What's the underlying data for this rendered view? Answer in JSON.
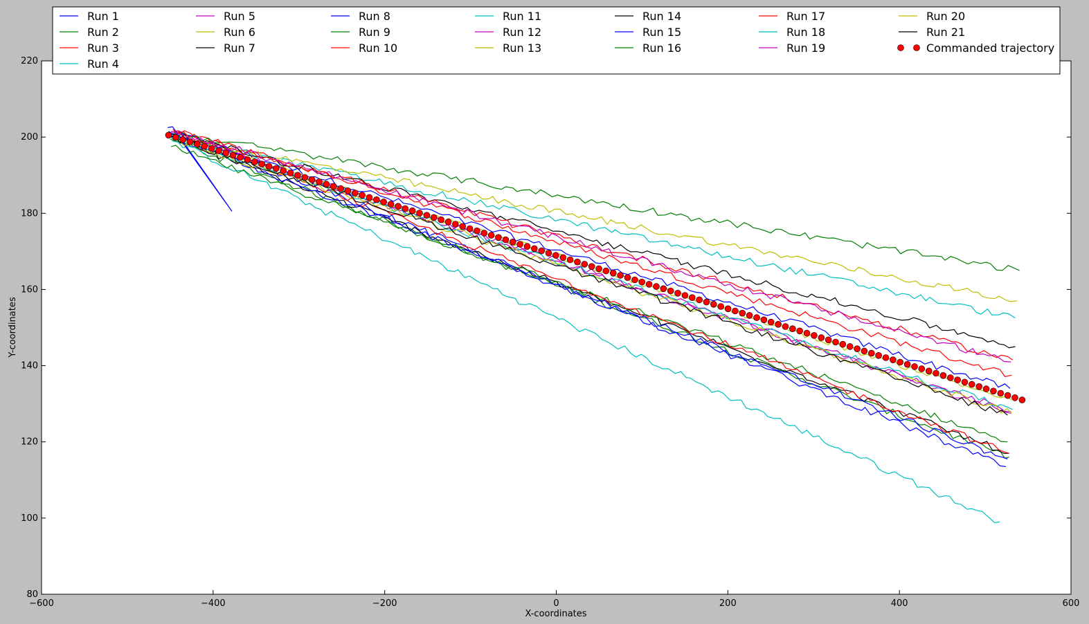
{
  "chart_data": {
    "type": "line",
    "title": "",
    "xlabel": "X-coordinates",
    "ylabel": "Y-coordinates",
    "xlim": [
      -600,
      600
    ],
    "ylim": [
      80,
      220
    ],
    "xticks": [
      "−600",
      "−400",
      "−200",
      "0",
      "200",
      "400",
      "600"
    ],
    "xtick_values": [
      -600,
      -400,
      -200,
      0,
      200,
      400,
      600
    ],
    "yticks": [
      "80",
      "100",
      "120",
      "140",
      "160",
      "180",
      "200",
      "220"
    ],
    "ytick_values": [
      80,
      100,
      120,
      140,
      160,
      180,
      200,
      220
    ],
    "grid": false,
    "legend_placement": "top",
    "series": [
      {
        "name": "Run 1",
        "color": "#0000ff",
        "start": [
          -452,
          201.5
        ],
        "end": [
          529,
          134.0
        ]
      },
      {
        "name": "Run 2",
        "color": "#008000",
        "start": [
          -450,
          199.5
        ],
        "end": [
          528,
          116.0
        ]
      },
      {
        "name": "Run 3",
        "color": "#ff0000",
        "start": [
          -447,
          202.0
        ],
        "end": [
          531,
          137.5
        ]
      },
      {
        "name": "Run 4",
        "color": "#00bfbf",
        "start": [
          -448,
          199.0
        ],
        "end": [
          517,
          99.0
        ]
      },
      {
        "name": "Run 5",
        "color": "#bf00bf",
        "start": [
          -446,
          201.0
        ],
        "end": [
          530,
          127.5
        ]
      },
      {
        "name": "Run 6",
        "color": "#bfbf00",
        "start": [
          -445,
          200.5
        ],
        "end": [
          531,
          131.0
        ]
      },
      {
        "name": "Run 7",
        "color": "#000000",
        "start": [
          -451,
          200.0
        ],
        "end": [
          528,
          117.0
        ]
      },
      {
        "name": "Run 8",
        "color": "#0000ff",
        "start": [
          -453,
          202.5
        ],
        "end": [
          524,
          113.5
        ],
        "detour": [
          -378,
          180.5
        ]
      },
      {
        "name": "Run 9",
        "color": "#008000",
        "start": [
          -449,
          197.5
        ],
        "end": [
          526,
          120.0
        ]
      },
      {
        "name": "Run 10",
        "color": "#ff0000",
        "start": [
          -446,
          201.5
        ],
        "end": [
          528,
          117.0
        ]
      },
      {
        "name": "Run 11",
        "color": "#00bfbf",
        "start": [
          -448,
          200.0
        ],
        "end": [
          535,
          152.5
        ]
      },
      {
        "name": "Run 12",
        "color": "#bf00bf",
        "start": [
          -450,
          201.0
        ],
        "end": [
          530,
          128.0
        ]
      },
      {
        "name": "Run 13",
        "color": "#bfbf00",
        "start": [
          -447,
          200.0
        ],
        "end": [
          537,
          157.0
        ]
      },
      {
        "name": "Run 14",
        "color": "#000000",
        "start": [
          -452,
          201.0
        ],
        "end": [
          535,
          145.0
        ]
      },
      {
        "name": "Run 15",
        "color": "#0000ff",
        "start": [
          -451,
          200.5
        ],
        "end": [
          526,
          115.5
        ]
      },
      {
        "name": "Run 16",
        "color": "#008000",
        "start": [
          -446,
          201.0
        ],
        "end": [
          540,
          165.0
        ]
      },
      {
        "name": "Run 17",
        "color": "#ff0000",
        "start": [
          -449,
          201.5
        ],
        "end": [
          532,
          141.5
        ]
      },
      {
        "name": "Run 18",
        "color": "#00bfbf",
        "start": [
          -450,
          200.0
        ],
        "end": [
          532,
          128.5
        ]
      },
      {
        "name": "Run 19",
        "color": "#bf00bf",
        "start": [
          -448,
          201.5
        ],
        "end": [
          530,
          141.0
        ]
      },
      {
        "name": "Run 20",
        "color": "#bfbf00",
        "start": [
          -447,
          199.5
        ],
        "end": [
          531,
          127.5
        ]
      },
      {
        "name": "Run 21",
        "color": "#000000",
        "start": [
          -450,
          200.0
        ],
        "end": [
          526,
          127.0
        ]
      }
    ],
    "commanded": {
      "name": "Commanded trajectory",
      "color": "#ff0000",
      "start": [
        -452,
        200.5
      ],
      "end": [
        543,
        131.0
      ],
      "points": 120
    }
  }
}
